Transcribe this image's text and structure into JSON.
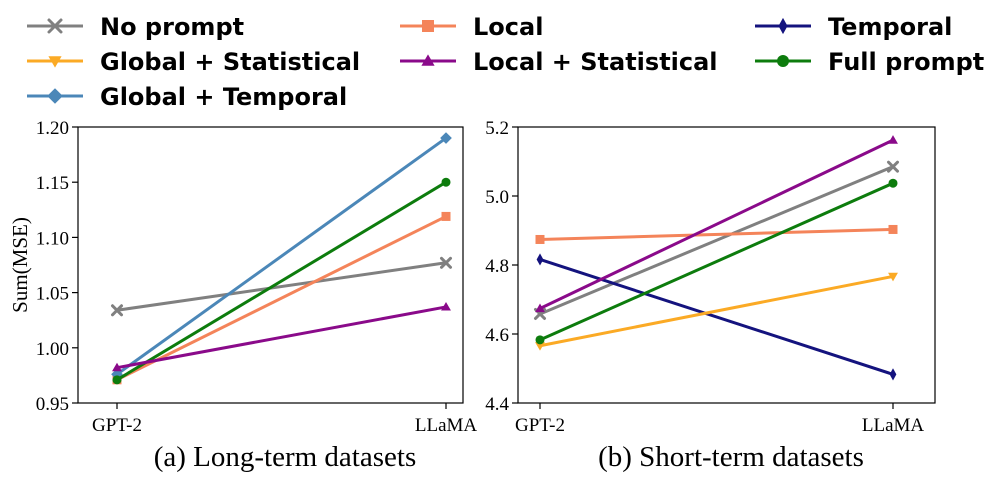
{
  "legend": [
    {
      "label": "No prompt",
      "color": "#808080",
      "marker": "x"
    },
    {
      "label": "Local",
      "color": "#f4845a",
      "marker": "s"
    },
    {
      "label": "Temporal",
      "color": "#14137e",
      "marker": "d"
    },
    {
      "label": "Global + Statistical",
      "color": "#fbaa25",
      "marker": "v"
    },
    {
      "label": "Local + Statistical",
      "color": "#8a0a8a",
      "marker": "^"
    },
    {
      "label": "Full prompt",
      "color": "#0d7c0d",
      "marker": "o"
    },
    {
      "label": "Global + Temporal",
      "color": "#4b87b8",
      "marker": "D"
    }
  ],
  "chart_data": [
    {
      "type": "line",
      "caption": "(a) Long-term datasets",
      "ylabel": "Sum(MSE)",
      "categories": [
        "GPT-2",
        "LLaMA"
      ],
      "ylim": [
        0.95,
        1.2
      ],
      "yticks": [
        "0.95",
        "1.00",
        "1.05",
        "1.10",
        "1.15",
        "1.20"
      ],
      "series": [
        {
          "name": "No prompt",
          "values": [
            1.034,
            1.077
          ]
        },
        {
          "name": "Local",
          "values": [
            0.971,
            1.119
          ]
        },
        {
          "name": "Global + Temporal",
          "values": [
            0.976,
            1.19
          ]
        },
        {
          "name": "Full prompt",
          "values": [
            0.971,
            1.15
          ]
        },
        {
          "name": "Local + Statistical",
          "values": [
            0.982,
            1.037
          ]
        }
      ]
    },
    {
      "type": "line",
      "caption": "(b) Short-term datasets",
      "ylabel": "",
      "categories": [
        "GPT-2",
        "LLaMA"
      ],
      "ylim": [
        4.4,
        5.2
      ],
      "yticks": [
        "4.4",
        "4.6",
        "4.8",
        "5.0",
        "5.2"
      ],
      "series": [
        {
          "name": "No prompt",
          "values": [
            4.658,
            5.085
          ]
        },
        {
          "name": "Local",
          "values": [
            4.874,
            4.903
          ]
        },
        {
          "name": "Temporal",
          "values": [
            4.816,
            4.483
          ]
        },
        {
          "name": "Global + Statistical",
          "values": [
            4.566,
            4.767
          ]
        },
        {
          "name": "Local + Statistical",
          "values": [
            4.674,
            5.162
          ]
        },
        {
          "name": "Full prompt",
          "values": [
            4.583,
            5.037
          ]
        }
      ]
    }
  ]
}
